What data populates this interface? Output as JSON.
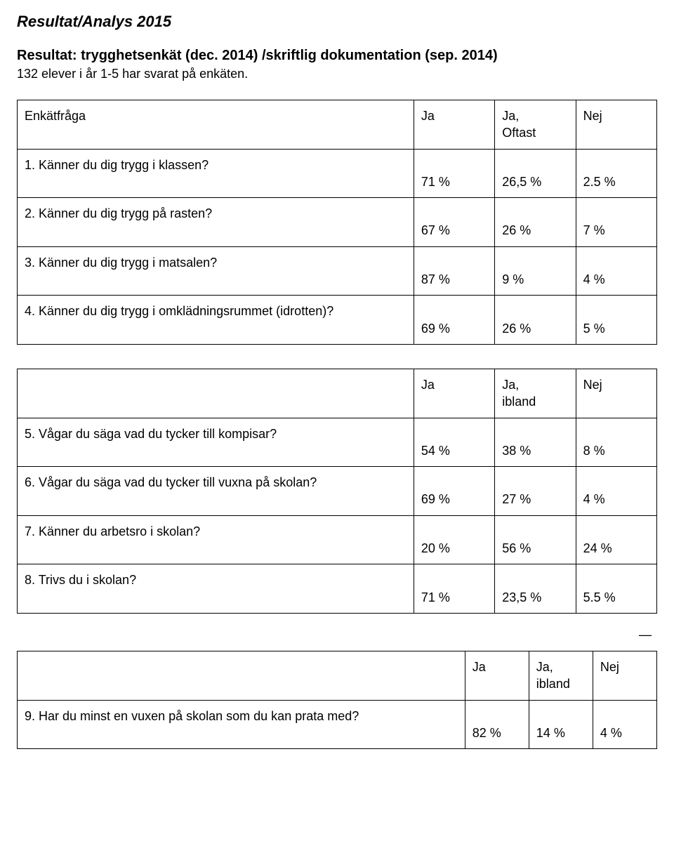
{
  "title": "Resultat/Analys 2015",
  "subhead": "Resultat: trygghetsenkät (dec. 2014) /skriftlig dokumentation (sep. 2014)",
  "intro": "132 elever i år 1-5 har svarat på enkäten.",
  "t1": {
    "head_q": "Enkätfråga",
    "head_c1": "Ja",
    "head_c2": "Ja,\nOftast",
    "head_c3": "Nej",
    "rows": [
      {
        "q": "1. Känner du dig trygg i klassen?",
        "c1": "71 %",
        "c2": "26,5 %",
        "c3": "2.5 %"
      },
      {
        "q": "2. Känner du dig trygg på rasten?",
        "c1": "67 %",
        "c2": "26 %",
        "c3": "7 %"
      },
      {
        "q": "3. Känner du dig trygg i matsalen?",
        "c1": "87 %",
        "c2": "9 %",
        "c3": "4 %"
      },
      {
        "q": "4. Känner du dig trygg i omklädningsrummet (idrotten)?",
        "c1": "69 %",
        "c2": "26 %",
        "c3": "5 %"
      }
    ]
  },
  "t2": {
    "head_q": "",
    "head_c1": "Ja",
    "head_c2": "Ja,\nibland",
    "head_c3": "Nej",
    "rows": [
      {
        "q": " 5. Vågar du säga vad du tycker till kompisar?",
        "c1": "54 %",
        "c2": "38 %",
        "c3": "8 %"
      },
      {
        "q": "6. Vågar du säga vad du tycker till vuxna på skolan?",
        "c1": "69 %",
        "c2": "27 %",
        "c3": "4 %"
      },
      {
        "q": "7. Känner du arbetsro i skolan?",
        "c1": "20 %",
        "c2": "56 %",
        "c3": "24 %"
      },
      {
        "q": "8. Trivs du i skolan?",
        "c1": "71 %",
        "c2": "23,5 %",
        "c3": "5.5 %"
      }
    ]
  },
  "dash": "—",
  "t3": {
    "head_q": "",
    "head_c1": "Ja",
    "head_c2": "Ja,\nibland",
    "head_c3": "Nej",
    "rows": [
      {
        "q": "9. Har du minst en vuxen på skolan som du kan prata med?",
        "c1": "82 %",
        "c2": "14 %",
        "c3": "4 %"
      }
    ]
  }
}
